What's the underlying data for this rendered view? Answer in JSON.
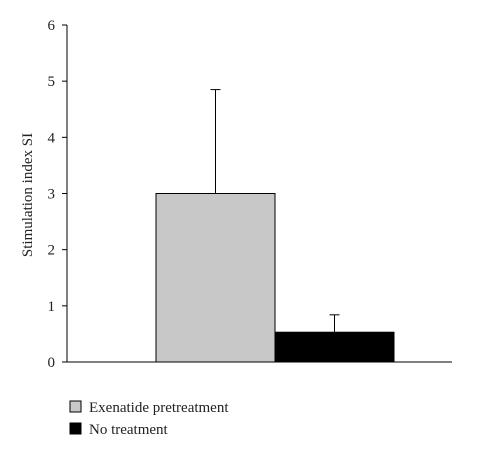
{
  "chart_data": {
    "type": "bar",
    "title": "",
    "xlabel": "",
    "ylabel": "Stimulation index SI",
    "ylim": [
      0,
      6
    ],
    "yticks": [
      0,
      1,
      2,
      3,
      4,
      5,
      6
    ],
    "grid": false,
    "legend_position": "bottom-left",
    "series": [
      {
        "name": "Exenatide pretreatment",
        "value": 3.0,
        "error_upper": 1.85,
        "color": "#c8c8c8"
      },
      {
        "name": "No treatment",
        "value": 0.53,
        "error_upper": 0.31,
        "color": "#000000"
      }
    ]
  }
}
